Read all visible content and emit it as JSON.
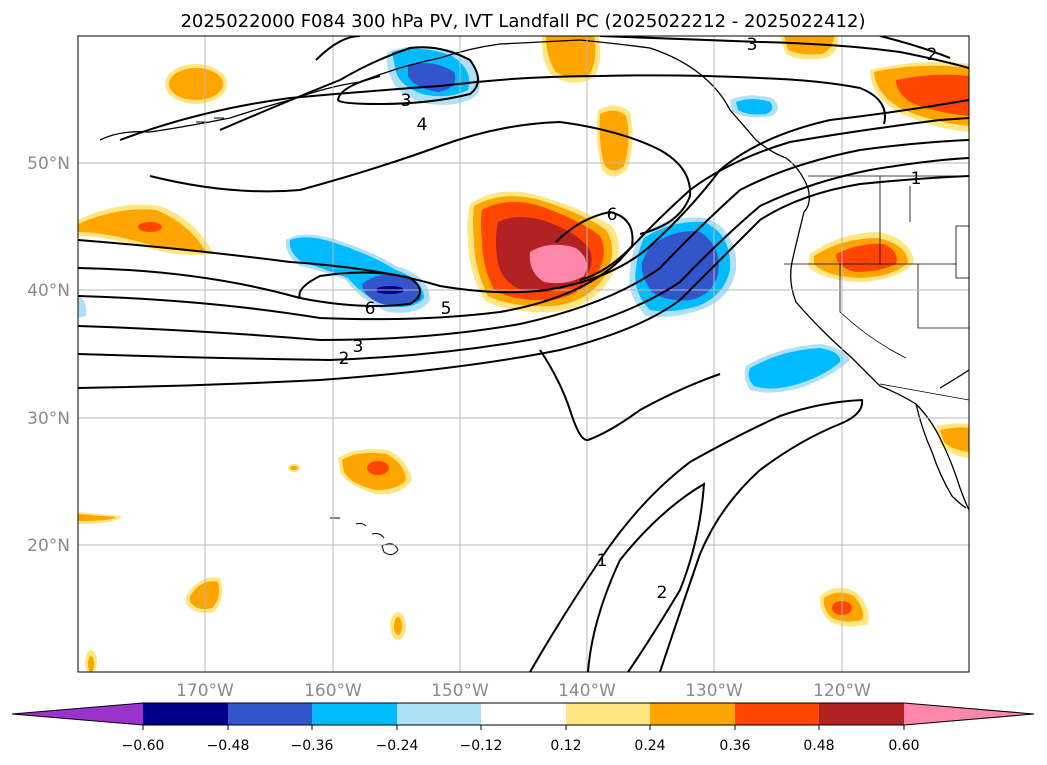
{
  "figure": {
    "title": "2025022000 F084 300 hPa PV, IVT Landfall PC (2025022212 - 2025022412)"
  },
  "map": {
    "projection": "PlateCarree",
    "lon_range": [
      -180,
      -110
    ],
    "lat_range": [
      10,
      60
    ],
    "lat_ticks": [
      {
        "value": 50,
        "label": "50°N"
      },
      {
        "value": 40,
        "label": "40°N"
      },
      {
        "value": 30,
        "label": "30°N"
      },
      {
        "value": 20,
        "label": "20°N"
      }
    ],
    "lon_ticks": [
      {
        "value": -170,
        "label": "170°W"
      },
      {
        "value": -160,
        "label": "160°W"
      },
      {
        "value": -150,
        "label": "150°W"
      },
      {
        "value": -140,
        "label": "140°W"
      },
      {
        "value": -130,
        "label": "130°W"
      },
      {
        "value": -120,
        "label": "120°W"
      }
    ],
    "gridlines": true,
    "contour_labels": [
      "3",
      "2",
      "4",
      "3",
      "1",
      "6",
      "6",
      "5",
      "3",
      "2",
      "1",
      "2"
    ]
  },
  "colorbar": {
    "orientation": "horizontal",
    "extend": "both",
    "colors": [
      "#9933cc",
      "#00008b",
      "#3355cc",
      "#00bbff",
      "#aee0f8",
      "#ffffff",
      "#ffe680",
      "#ffa500",
      "#ff4500",
      "#b22222",
      "#ff88aa"
    ],
    "tick_labels": [
      "−0.60",
      "−0.48",
      "−0.36",
      "−0.24",
      "−0.12",
      "0.12",
      "0.24",
      "0.36",
      "0.48",
      "0.60"
    ]
  }
}
